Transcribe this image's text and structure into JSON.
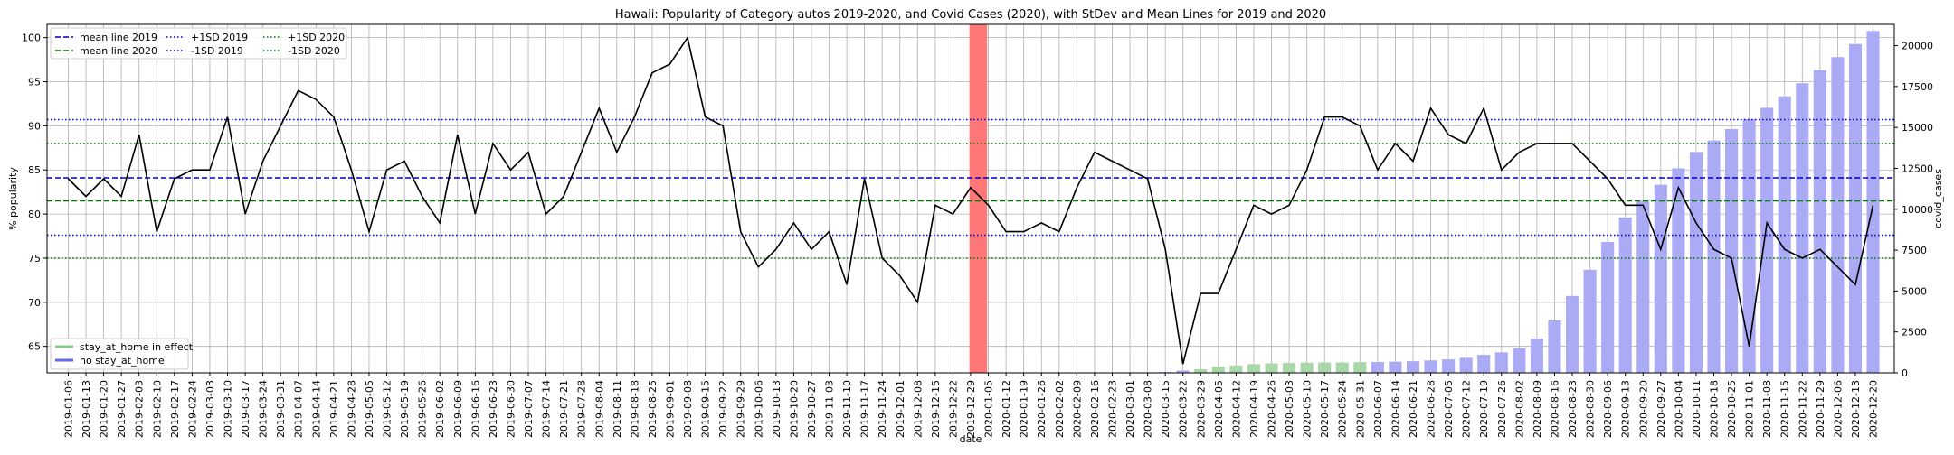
{
  "chart_data": {
    "type": "line",
    "title": "Hawaii: Popularity of Category autos 2019-2020, and Covid Cases (2020), with StDev and Mean Lines for 2019 and 2020",
    "xlabel": "date",
    "ylabel": "% popularity",
    "y2label": "covid_cases",
    "ylim": [
      62,
      101.5
    ],
    "y2lim": [
      0,
      21300
    ],
    "yticks": [
      65,
      70,
      75,
      80,
      85,
      90,
      95,
      100
    ],
    "y2ticks": [
      0,
      2500,
      5000,
      7500,
      10000,
      12500,
      15000,
      17500,
      20000
    ],
    "grid": true,
    "categories": [
      "2019-01-06",
      "2019-01-13",
      "2019-01-20",
      "2019-01-27",
      "2019-02-03",
      "2019-02-10",
      "2019-02-17",
      "2019-02-24",
      "2019-03-03",
      "2019-03-10",
      "2019-03-17",
      "2019-03-24",
      "2019-03-31",
      "2019-04-07",
      "2019-04-14",
      "2019-04-21",
      "2019-04-28",
      "2019-05-05",
      "2019-05-12",
      "2019-05-19",
      "2019-05-26",
      "2019-06-02",
      "2019-06-09",
      "2019-06-16",
      "2019-06-23",
      "2019-06-30",
      "2019-07-07",
      "2019-07-14",
      "2019-07-21",
      "2019-07-28",
      "2019-08-04",
      "2019-08-11",
      "2019-08-18",
      "2019-08-25",
      "2019-09-01",
      "2019-09-08",
      "2019-09-15",
      "2019-09-22",
      "2019-09-29",
      "2019-10-06",
      "2019-10-13",
      "2019-10-20",
      "2019-10-27",
      "2019-11-03",
      "2019-11-10",
      "2019-11-17",
      "2019-11-24",
      "2019-12-01",
      "2019-12-08",
      "2019-12-15",
      "2019-12-22",
      "2019-12-29",
      "2020-01-05",
      "2020-01-12",
      "2020-01-19",
      "2020-01-26",
      "2020-02-02",
      "2020-02-09",
      "2020-02-16",
      "2020-02-23",
      "2020-03-01",
      "2020-03-08",
      "2020-03-15",
      "2020-03-22",
      "2020-03-29",
      "2020-04-05",
      "2020-04-12",
      "2020-04-19",
      "2020-04-26",
      "2020-05-03",
      "2020-05-10",
      "2020-05-17",
      "2020-05-24",
      "2020-05-31",
      "2020-06-07",
      "2020-06-14",
      "2020-06-21",
      "2020-06-28",
      "2020-07-05",
      "2020-07-12",
      "2020-07-19",
      "2020-07-26",
      "2020-08-02",
      "2020-08-09",
      "2020-08-16",
      "2020-08-23",
      "2020-08-30",
      "2020-09-06",
      "2020-09-13",
      "2020-09-20",
      "2020-09-27",
      "2020-10-04",
      "2020-10-11",
      "2020-10-18",
      "2020-10-25",
      "2020-11-01",
      "2020-11-08",
      "2020-11-15",
      "2020-11-22",
      "2020-11-29",
      "2020-12-06",
      "2020-12-13",
      "2020-12-20"
    ],
    "popularity": [
      84,
      82,
      84,
      82,
      89,
      78,
      84,
      85,
      85,
      91,
      80,
      86,
      90,
      94,
      93,
      91,
      85,
      78,
      85,
      86,
      82,
      79,
      89,
      80,
      88,
      85,
      87,
      80,
      82,
      87,
      92,
      87,
      91,
      96,
      97,
      100,
      91,
      90,
      78,
      74,
      76,
      79,
      76,
      78,
      72,
      84,
      75,
      73,
      70,
      81,
      80,
      83,
      81,
      78,
      78,
      79,
      78,
      83,
      87,
      86,
      85,
      84,
      76,
      63,
      71,
      71,
      76,
      81,
      80,
      81,
      85,
      91,
      91,
      90,
      85,
      88,
      86,
      92,
      89,
      88,
      92,
      85,
      87,
      88,
      88,
      88,
      86,
      84,
      81,
      81,
      76,
      83,
      79,
      76,
      75,
      65,
      79,
      76,
      75,
      76,
      74,
      72,
      81
    ],
    "covid_cases": [
      null,
      null,
      null,
      null,
      null,
      null,
      null,
      null,
      null,
      null,
      null,
      null,
      null,
      null,
      null,
      null,
      null,
      null,
      null,
      null,
      null,
      null,
      null,
      null,
      null,
      null,
      null,
      null,
      null,
      null,
      null,
      null,
      null,
      null,
      null,
      null,
      null,
      null,
      null,
      null,
      null,
      null,
      null,
      null,
      null,
      null,
      null,
      null,
      null,
      null,
      null,
      null,
      null,
      null,
      null,
      null,
      null,
      null,
      null,
      null,
      null,
      null,
      48,
      140,
      224,
      373,
      450,
      530,
      580,
      600,
      620,
      630,
      630,
      650,
      660,
      680,
      710,
      760,
      820,
      920,
      1100,
      1250,
      1500,
      2100,
      3200,
      4700,
      6300,
      8000,
      9500,
      10500,
      11500,
      12500,
      13500,
      14200,
      14900,
      15500,
      16200,
      16900,
      17700,
      18500,
      19300,
      20100,
      20900
    ],
    "stay_at_home": [
      false,
      false,
      false,
      false,
      false,
      false,
      false,
      false,
      false,
      false,
      false,
      false,
      false,
      false,
      false,
      false,
      false,
      false,
      false,
      false,
      false,
      false,
      false,
      false,
      false,
      false,
      false,
      false,
      false,
      false,
      false,
      false,
      false,
      false,
      false,
      false,
      false,
      false,
      false,
      false,
      false,
      false,
      false,
      false,
      false,
      false,
      false,
      false,
      false,
      false,
      false,
      false,
      false,
      false,
      false,
      false,
      false,
      false,
      false,
      false,
      false,
      false,
      false,
      false,
      true,
      true,
      true,
      true,
      true,
      true,
      true,
      true,
      true,
      true,
      false,
      false,
      false,
      false,
      false,
      false,
      false,
      false,
      false,
      false,
      false,
      false,
      false,
      false,
      false,
      false,
      false,
      false,
      false,
      false,
      false,
      false,
      false,
      false,
      false,
      false,
      false,
      false,
      false
    ],
    "highlight_date": "2020-01-01",
    "reference_lines": [
      {
        "name": "mean line 2019",
        "value": 84.1,
        "color": "#0000cc",
        "style": "dashed"
      },
      {
        "name": "mean line 2020",
        "value": 81.5,
        "color": "#007700",
        "style": "dashed"
      },
      {
        "name": "+1SD 2019",
        "value": 90.7,
        "color": "#0000cc",
        "style": "dotted"
      },
      {
        "name": "-1SD 2019",
        "value": 77.6,
        "color": "#0000cc",
        "style": "dotted"
      },
      {
        "name": "+1SD 2020",
        "value": 88.0,
        "color": "#007700",
        "style": "dotted"
      },
      {
        "name": "-1SD 2020",
        "value": 75.0,
        "color": "#007700",
        "style": "dotted"
      }
    ],
    "legend_top": [
      {
        "label": "mean line 2019",
        "color": "#0000cc",
        "style": "dashed"
      },
      {
        "label": "mean line 2020",
        "color": "#007700",
        "style": "dashed"
      },
      {
        "label": "+1SD 2019",
        "color": "#0000cc",
        "style": "dotted"
      },
      {
        "label": "-1SD 2019",
        "color": "#0000cc",
        "style": "dotted"
      },
      {
        "label": "+1SD 2020",
        "color": "#007700",
        "style": "dotted"
      },
      {
        "label": "-1SD 2020",
        "color": "#007700",
        "style": "dotted"
      }
    ],
    "legend_bottom": [
      {
        "label": "stay_at_home in effect",
        "color": "#88cc88"
      },
      {
        "label": "no stay_at_home",
        "color": "#6666ee"
      }
    ],
    "legend_top_position": "upper-left",
    "legend_bottom_position": "lower-left",
    "colors": {
      "line": "#000000",
      "bar_no_stay": "#aaaaf5",
      "bar_stay": "#a8d8a8",
      "highlight": "#ff7777",
      "grid": "#b0b0b0"
    }
  }
}
